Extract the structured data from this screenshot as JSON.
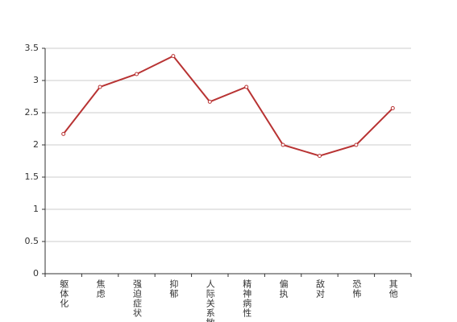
{
  "chart_data": {
    "type": "line",
    "categories": [
      "躯体化",
      "焦虑",
      "强迫症状",
      "抑郁",
      "人际关系敏感",
      "精神病性",
      "偏执",
      "敌对",
      "恐怖",
      "其他"
    ],
    "series": [
      {
        "color": "#b83333",
        "values": [
          2.17,
          2.9,
          3.1,
          3.38,
          2.67,
          2.9,
          2.0,
          1.83,
          2.0,
          2.57
        ]
      }
    ],
    "ylim": [
      0,
      3.5
    ],
    "yticks": [
      0,
      0.5,
      1,
      1.5,
      2,
      2.5,
      3,
      3.5
    ],
    "grid": true
  }
}
